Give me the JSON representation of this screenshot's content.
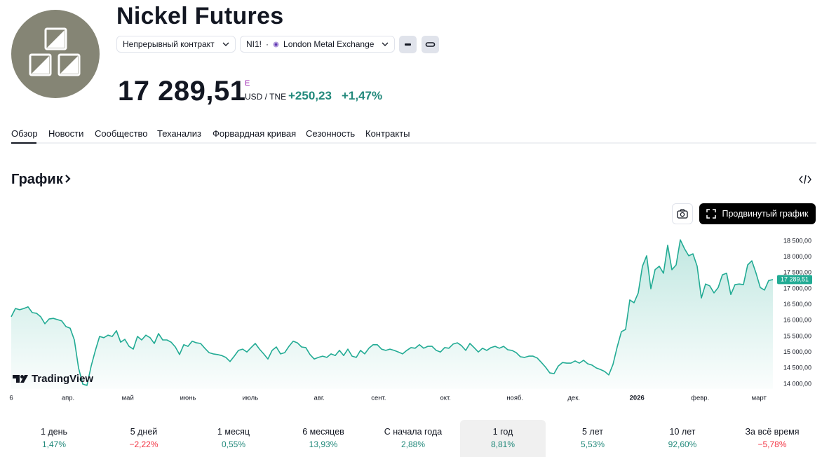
{
  "header": {
    "title": "Nickel Futures",
    "contract": "Непрерывный контракт",
    "symbol": "NI1!",
    "exchange": "London Metal Exchange",
    "price": "17 289,51",
    "price_flag": "E",
    "currency": "USD / TNE",
    "change": "+250,23",
    "change_percent": "+1,47%"
  },
  "tabs": [
    "Обзор",
    "Новости",
    "Сообщество",
    "Теханализ",
    "Форвардная кривая",
    "Сезонность",
    "Контракты"
  ],
  "section_title": "График",
  "advanced_chart_button": "Продвинутый график",
  "chart_data": {
    "type": "line",
    "brand": "TradingView",
    "series": [
      {
        "color": "#22ab94",
        "values": [
          16120,
          16380,
          16340,
          16380,
          16430,
          16250,
          16230,
          16120,
          15900,
          16050,
          16070,
          16030,
          15990,
          15810,
          15760,
          15390,
          14510,
          14000,
          13960,
          14570,
          15060,
          15500,
          15460,
          15540,
          15500,
          15680,
          15320,
          15410,
          15190,
          15100,
          15500,
          15390,
          15540,
          15460,
          15280,
          15590,
          15390,
          15390,
          15320,
          15170,
          14930,
          15240,
          15190,
          15350,
          15300,
          15280,
          15130,
          14990,
          14950,
          14930,
          14900,
          14840,
          14710,
          14880,
          15060,
          15100,
          15010,
          15150,
          15280,
          15100,
          14950,
          14790,
          15060,
          15170,
          14950,
          14990,
          15190,
          15350,
          15300,
          15170,
          15150,
          14930,
          14790,
          14840,
          14880,
          14840,
          14950,
          14900,
          15060,
          14900,
          15100,
          14880,
          14840,
          15060,
          14950,
          15130,
          15240,
          15240,
          15100,
          15060,
          15100,
          15060,
          15010,
          14950,
          15060,
          15150,
          15130,
          15240,
          15130,
          15190,
          15190,
          15060,
          15010,
          15150,
          15130,
          15260,
          15300,
          15210,
          15060,
          15280,
          15150,
          15010,
          15130,
          15060,
          15150,
          15190,
          15130,
          15190,
          15080,
          15060,
          14990,
          14860,
          14840,
          14880,
          14880,
          14820,
          14680,
          14530,
          14350,
          14330,
          14570,
          14680,
          14660,
          14660,
          14730,
          14660,
          14750,
          14640,
          14600,
          14510,
          14460,
          14400,
          14290,
          14620,
          15170,
          15650,
          15720,
          16650,
          16560,
          16870,
          17710,
          18040,
          17000,
          17600,
          17710,
          17490,
          18370,
          17600,
          17750,
          18540,
          18260,
          18040,
          18100,
          17710,
          16710,
          17150,
          17090,
          16870,
          17040,
          17440,
          17490,
          16820,
          17130,
          17150,
          17130,
          17750,
          17880,
          17490,
          17040,
          16960,
          17260,
          17289.51
        ]
      }
    ],
    "last_value_label": "17 289,51",
    "xlim": [
      0,
      181
    ],
    "xticks": [
      {
        "value": 0,
        "label": "6"
      },
      {
        "value": 13.5,
        "label": "апр."
      },
      {
        "value": 27.7,
        "label": "май"
      },
      {
        "value": 42,
        "label": "июнь"
      },
      {
        "value": 56.8,
        "label": "июль"
      },
      {
        "value": 73.2,
        "label": "авг."
      },
      {
        "value": 87.3,
        "label": "сент."
      },
      {
        "value": 103.2,
        "label": "окт."
      },
      {
        "value": 119.7,
        "label": "нояб."
      },
      {
        "value": 133.7,
        "label": "дек."
      },
      {
        "value": 148.7,
        "label": "2026"
      },
      {
        "value": 163.7,
        "label": "февр."
      },
      {
        "value": 177.7,
        "label": "март"
      }
    ],
    "ylim": [
      13850,
      18800
    ],
    "yticks": [
      {
        "value": 14000,
        "label": "14 000,00"
      },
      {
        "value": 14500,
        "label": "14 500,00"
      },
      {
        "value": 15000,
        "label": "15 000,00"
      },
      {
        "value": 15500,
        "label": "15 500,00"
      },
      {
        "value": 16000,
        "label": "16 000,00"
      },
      {
        "value": 16500,
        "label": "16 500,00"
      },
      {
        "value": 17000,
        "label": "17 000,00"
      },
      {
        "value": 17500,
        "label": "17 500,00"
      },
      {
        "value": 18000,
        "label": "18 000,00"
      },
      {
        "value": 18500,
        "label": "18 500,00"
      }
    ],
    "grid": false
  },
  "periods": {
    "labels": [
      "1 день",
      "5 дней",
      "1 месяц",
      "6 месяцев",
      "С начала года",
      "1 год",
      "5 лет",
      "10 лет",
      "За всё время"
    ],
    "values": [
      1.47,
      -2.22,
      0.55,
      13.93,
      2.88,
      8.81,
      5.53,
      92.6,
      -5.78
    ],
    "value_labels": [
      "1,47%",
      "−2,22%",
      "0,55%",
      "13,93%",
      "2,88%",
      "8,81%",
      "5,53%",
      "92,60%",
      "−5,78%"
    ],
    "selected": 5
  }
}
